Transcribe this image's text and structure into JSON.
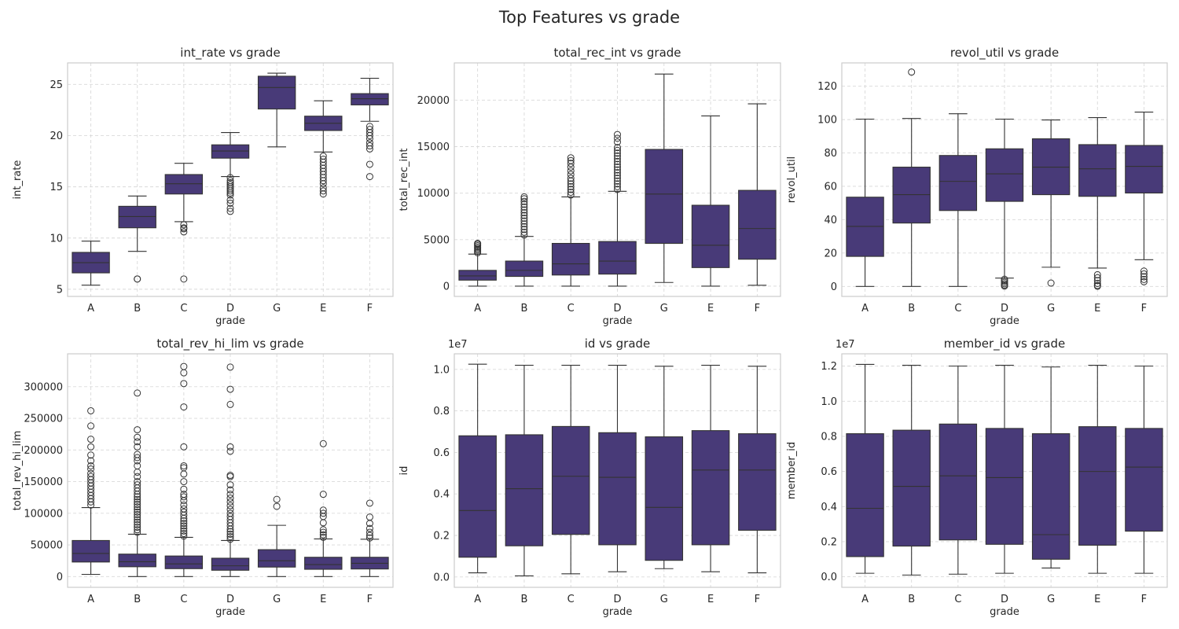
{
  "figure": {
    "suptitle": "Top Features vs grade"
  },
  "colors": {
    "box_fill": "#483a78",
    "line": "#333333",
    "frame": "#cccccc",
    "grid": "#d9d9d9",
    "background": "#ffffff"
  },
  "chart_data": [
    {
      "type": "box",
      "title": "int_rate vs grade",
      "xlabel": "grade",
      "ylabel": "int_rate",
      "categories": [
        "A",
        "B",
        "C",
        "D",
        "G",
        "E",
        "F"
      ],
      "ylim": [
        4.3,
        27.1
      ],
      "yticks": [
        5,
        10,
        15,
        20,
        25
      ],
      "yticklabels": [
        "5",
        "10",
        "15",
        "20",
        "25"
      ],
      "offset_label": "",
      "grid": true,
      "boxes": [
        {
          "whislo": 5.4,
          "q1": 6.6,
          "med": 7.6,
          "q3": 8.6,
          "whishi": 9.7,
          "fliers": []
        },
        {
          "whislo": 8.7,
          "q1": 11.0,
          "med": 12.1,
          "q3": 13.1,
          "whishi": 14.1,
          "fliers": [
            6.0,
            6.0
          ]
        },
        {
          "whislo": 11.6,
          "q1": 14.3,
          "med": 15.3,
          "q3": 16.2,
          "whishi": 17.3,
          "fliers": [
            11.3,
            11.0,
            10.9,
            10.6,
            6.0
          ]
        },
        {
          "whislo": 16.0,
          "q1": 17.8,
          "med": 18.5,
          "q3": 19.1,
          "whishi": 20.3,
          "fliers": [
            15.9,
            15.6,
            15.4,
            15.2,
            15.0,
            14.8,
            14.6,
            14.4,
            14.2,
            13.7,
            13.4,
            12.9,
            12.6
          ]
        },
        {
          "whislo": 18.9,
          "q1": 22.6,
          "med": 24.7,
          "q3": 25.8,
          "whishi": 26.1,
          "fliers": []
        },
        {
          "whislo": 18.4,
          "q1": 20.5,
          "med": 21.2,
          "q3": 21.9,
          "whishi": 23.4,
          "fliers": [
            18.0,
            17.7,
            17.4,
            17.1,
            16.8,
            16.5,
            16.2,
            15.9,
            15.6,
            15.3,
            14.9,
            14.6,
            14.3
          ]
        },
        {
          "whislo": 21.4,
          "q1": 23.0,
          "med": 23.6,
          "q3": 24.1,
          "whishi": 25.6,
          "fliers": [
            20.9,
            20.6,
            20.3,
            20.0,
            19.7,
            19.3,
            19.0,
            18.7,
            17.2,
            16.0
          ]
        }
      ]
    },
    {
      "type": "box",
      "title": "total_rec_int vs grade",
      "xlabel": "grade",
      "ylabel": "total_rec_int",
      "categories": [
        "A",
        "B",
        "C",
        "D",
        "G",
        "E",
        "F"
      ],
      "ylim": [
        -1100,
        24000
      ],
      "yticks": [
        0,
        5000,
        10000,
        15000,
        20000
      ],
      "yticklabels": [
        "0",
        "5000",
        "10000",
        "15000",
        "20000"
      ],
      "offset_label": "",
      "grid": true,
      "boxes": [
        {
          "whislo": 0,
          "q1": 650,
          "med": 1100,
          "q3": 1700,
          "whishi": 3450,
          "fliers": [
            3600,
            3750,
            3900,
            4050,
            4200,
            4350,
            4500,
            4600
          ]
        },
        {
          "whislo": 0,
          "q1": 1050,
          "med": 1700,
          "q3": 2700,
          "whishi": 5350,
          "fliers": [
            5500,
            5800,
            6100,
            6400,
            6700,
            7000,
            7300,
            7600,
            7900,
            8200,
            8500,
            8800,
            9100,
            9400,
            9600
          ]
        },
        {
          "whislo": 0,
          "q1": 1200,
          "med": 2400,
          "q3": 4600,
          "whishi": 9600,
          "fliers": [
            9800,
            10100,
            10400,
            10700,
            11000,
            11300,
            11600,
            12000,
            12400,
            12800,
            13200,
            13500,
            13800
          ]
        },
        {
          "whislo": 0,
          "q1": 1300,
          "med": 2700,
          "q3": 4800,
          "whishi": 10200,
          "fliers": [
            10400,
            10700,
            11000,
            11300,
            11600,
            11900,
            12200,
            12500,
            12800,
            13100,
            13400,
            13700,
            14000,
            14300,
            14600,
            14900,
            15500,
            15900,
            16300
          ]
        },
        {
          "whislo": 400,
          "q1": 4600,
          "med": 9900,
          "q3": 14700,
          "whishi": 22800,
          "fliers": []
        },
        {
          "whislo": 0,
          "q1": 2000,
          "med": 4400,
          "q3": 8700,
          "whishi": 18300,
          "fliers": []
        },
        {
          "whislo": 100,
          "q1": 2900,
          "med": 6200,
          "q3": 10300,
          "whishi": 19600,
          "fliers": []
        }
      ]
    },
    {
      "type": "box",
      "title": "revol_util vs grade",
      "xlabel": "grade",
      "ylabel": "revol_util",
      "categories": [
        "A",
        "B",
        "C",
        "D",
        "G",
        "E",
        "F"
      ],
      "ylim": [
        -6,
        134
      ],
      "yticks": [
        0,
        20,
        40,
        60,
        80,
        100,
        120
      ],
      "yticklabels": [
        "0",
        "20",
        "40",
        "60",
        "80",
        "100",
        "120"
      ],
      "offset_label": "",
      "grid": true,
      "boxes": [
        {
          "whislo": 0,
          "q1": 18,
          "med": 36,
          "q3": 53.5,
          "whishi": 100.3,
          "fliers": []
        },
        {
          "whislo": 0,
          "q1": 38,
          "med": 55,
          "q3": 71.5,
          "whishi": 100.7,
          "fliers": [
            128.5
          ]
        },
        {
          "whislo": 0,
          "q1": 45.5,
          "med": 63,
          "q3": 78.5,
          "whishi": 103.5,
          "fliers": []
        },
        {
          "whislo": 5,
          "q1": 51,
          "med": 67.5,
          "q3": 82.5,
          "whishi": 100.3,
          "fliers": [
            4.3,
            3.4,
            2.5,
            1.6,
            0.8,
            0.2
          ]
        },
        {
          "whislo": 11.5,
          "q1": 55,
          "med": 71.5,
          "q3": 88.5,
          "whishi": 99.8,
          "fliers": [
            2
          ]
        },
        {
          "whislo": 11,
          "q1": 54,
          "med": 70.5,
          "q3": 85,
          "whishi": 101.2,
          "fliers": [
            7,
            5.2,
            3.5,
            1.8,
            0.6,
            0.1
          ]
        },
        {
          "whislo": 16,
          "q1": 56,
          "med": 72,
          "q3": 84.5,
          "whishi": 104.5,
          "fliers": [
            9.2,
            7.5,
            5.8,
            4.2,
            2.8
          ]
        }
      ]
    },
    {
      "type": "box",
      "title": "total_rev_hi_lim vs grade",
      "xlabel": "grade",
      "ylabel": "total_rev_hi_lim",
      "categories": [
        "A",
        "B",
        "C",
        "D",
        "G",
        "E",
        "F"
      ],
      "ylim": [
        -17000,
        352000
      ],
      "yticks": [
        0,
        50000,
        100000,
        150000,
        200000,
        250000,
        300000
      ],
      "yticklabels": [
        "0",
        "50000",
        "100000",
        "150000",
        "200000",
        "250000",
        "300000"
      ],
      "offset_label": "",
      "grid": true,
      "boxes": [
        {
          "whislo": 3500,
          "q1": 23000,
          "med": 36500,
          "q3": 57000,
          "whishi": 109000,
          "fliers": [
            113000,
            118000,
            123000,
            128000,
            133000,
            138000,
            143000,
            148000,
            153000,
            158000,
            163000,
            170000,
            175000,
            183000,
            192000,
            205000,
            217000,
            238000,
            262000
          ]
        },
        {
          "whislo": 0,
          "q1": 15500,
          "med": 23500,
          "q3": 35500,
          "whishi": 67000,
          "fliers": [
            70000,
            74000,
            78000,
            82000,
            86000,
            90000,
            94000,
            98000,
            102000,
            106000,
            110000,
            114000,
            118000,
            122000,
            126000,
            130000,
            135000,
            140000,
            145000,
            150000,
            158000,
            165000,
            175000,
            183000,
            188000,
            193000,
            205000,
            213000,
            220000,
            232000,
            290000
          ]
        },
        {
          "whislo": 0,
          "q1": 12500,
          "med": 20000,
          "q3": 32500,
          "whishi": 62000,
          "fliers": [
            64000,
            68000,
            72000,
            76000,
            80000,
            84000,
            88000,
            92000,
            97000,
            102000,
            107000,
            113000,
            120000,
            126000,
            130000,
            138000,
            150000,
            162000,
            172000,
            175000,
            205000,
            268000,
            305000,
            322000,
            332000
          ]
        },
        {
          "whislo": 0,
          "q1": 10000,
          "med": 17000,
          "q3": 29000,
          "whishi": 57000,
          "fliers": [
            59000,
            63000,
            67000,
            71000,
            75000,
            80000,
            85000,
            90000,
            95000,
            100000,
            106000,
            112000,
            118000,
            124000,
            130000,
            137000,
            145000,
            158000,
            160000,
            198000,
            205000,
            272000,
            296000,
            331000
          ]
        },
        {
          "whislo": 0,
          "q1": 15000,
          "med": 25000,
          "q3": 42500,
          "whishi": 81000,
          "fliers": [
            111000,
            122000
          ]
        },
        {
          "whislo": 0,
          "q1": 11500,
          "med": 19000,
          "q3": 30500,
          "whishi": 59500,
          "fliers": [
            62000,
            66000,
            70000,
            74000,
            85000,
            95000,
            100000,
            105000,
            130000,
            210000
          ]
        },
        {
          "whislo": 0,
          "q1": 12000,
          "med": 21000,
          "q3": 30500,
          "whishi": 59000,
          "fliers": [
            61000,
            65000,
            70000,
            76000,
            84000,
            94000,
            116000
          ]
        }
      ]
    },
    {
      "type": "box",
      "title": "id vs grade",
      "xlabel": "grade",
      "ylabel": "id",
      "categories": [
        "A",
        "B",
        "C",
        "D",
        "G",
        "E",
        "F"
      ],
      "ylim": [
        -0.05,
        1.075
      ],
      "yticks": [
        0,
        0.2,
        0.4,
        0.6,
        0.8,
        1.0
      ],
      "yticklabels": [
        "0.0",
        "0.2",
        "0.4",
        "0.6",
        "0.8",
        "1.0"
      ],
      "offset_label": "1e7",
      "grid": true,
      "boxes": [
        {
          "whislo": 0.02,
          "q1": 0.095,
          "med": 0.32,
          "q3": 0.68,
          "whishi": 1.025,
          "fliers": []
        },
        {
          "whislo": 0.005,
          "q1": 0.15,
          "med": 0.425,
          "q3": 0.685,
          "whishi": 1.02,
          "fliers": []
        },
        {
          "whislo": 0.015,
          "q1": 0.205,
          "med": 0.485,
          "q3": 0.725,
          "whishi": 1.02,
          "fliers": []
        },
        {
          "whislo": 0.025,
          "q1": 0.155,
          "med": 0.48,
          "q3": 0.695,
          "whishi": 1.02,
          "fliers": []
        },
        {
          "whislo": 0.04,
          "q1": 0.08,
          "med": 0.335,
          "q3": 0.675,
          "whishi": 1.015,
          "fliers": []
        },
        {
          "whislo": 0.025,
          "q1": 0.155,
          "med": 0.515,
          "q3": 0.705,
          "whishi": 1.02,
          "fliers": []
        },
        {
          "whislo": 0.02,
          "q1": 0.225,
          "med": 0.515,
          "q3": 0.69,
          "whishi": 1.015,
          "fliers": []
        }
      ]
    },
    {
      "type": "box",
      "title": "member_id vs grade",
      "xlabel": "grade",
      "ylabel": "member_id",
      "categories": [
        "A",
        "B",
        "C",
        "D",
        "G",
        "E",
        "F"
      ],
      "ylim": [
        -0.06,
        1.27
      ],
      "yticks": [
        0,
        0.2,
        0.4,
        0.6,
        0.8,
        1.0,
        1.2
      ],
      "yticklabels": [
        "0.0",
        "0.2",
        "0.4",
        "0.6",
        "0.8",
        "1.0",
        "1.2"
      ],
      "offset_label": "1e7",
      "grid": true,
      "boxes": [
        {
          "whislo": 0.02,
          "q1": 0.115,
          "med": 0.39,
          "q3": 0.815,
          "whishi": 1.21,
          "fliers": []
        },
        {
          "whislo": 0.01,
          "q1": 0.175,
          "med": 0.515,
          "q3": 0.835,
          "whishi": 1.205,
          "fliers": []
        },
        {
          "whislo": 0.015,
          "q1": 0.21,
          "med": 0.575,
          "q3": 0.87,
          "whishi": 1.2,
          "fliers": []
        },
        {
          "whislo": 0.02,
          "q1": 0.185,
          "med": 0.565,
          "q3": 0.845,
          "whishi": 1.205,
          "fliers": []
        },
        {
          "whislo": 0.05,
          "q1": 0.1,
          "med": 0.24,
          "q3": 0.815,
          "whishi": 1.195,
          "fliers": []
        },
        {
          "whislo": 0.02,
          "q1": 0.18,
          "med": 0.6,
          "q3": 0.855,
          "whishi": 1.205,
          "fliers": []
        },
        {
          "whislo": 0.02,
          "q1": 0.26,
          "med": 0.625,
          "q3": 0.845,
          "whishi": 1.2,
          "fliers": []
        }
      ]
    }
  ]
}
